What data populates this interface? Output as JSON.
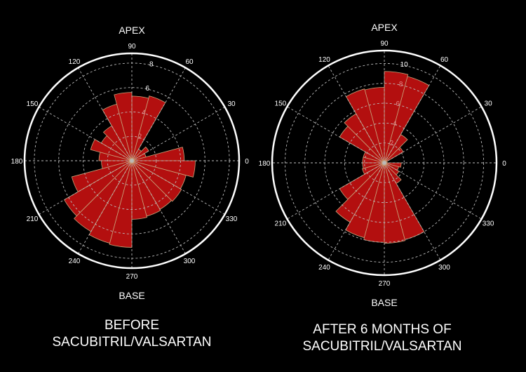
{
  "colors": {
    "background": "#000000",
    "bar_fill": "#b30f0f",
    "bar_edge": "#c8a27a",
    "grid": "#bbbbbb",
    "outer_ring": "#ffffff"
  },
  "chart_data": [
    {
      "type": "polar-bar",
      "top_label": "APEX",
      "bottom_label": "BASE",
      "caption": [
        "BEFORE",
        "SACUBITRIL/VALSARTAN"
      ],
      "angle_ticks": [
        "0",
        "30",
        "60",
        "90",
        "120",
        "150",
        "180",
        "210",
        "240",
        "270",
        "300",
        "330"
      ],
      "radial_ticks": [
        2,
        4,
        6,
        8
      ],
      "rmax": 8.8,
      "grid": true,
      "bins_deg": [
        [
          0,
          15
        ],
        [
          15,
          30
        ],
        [
          30,
          45
        ],
        [
          45,
          60
        ],
        [
          60,
          75
        ],
        [
          75,
          90
        ],
        [
          90,
          105
        ],
        [
          105,
          120
        ],
        [
          120,
          135
        ],
        [
          135,
          150
        ],
        [
          150,
          165
        ],
        [
          165,
          180
        ],
        [
          180,
          195
        ],
        [
          195,
          210
        ],
        [
          210,
          225
        ],
        [
          225,
          240
        ],
        [
          240,
          255
        ],
        [
          255,
          270
        ],
        [
          270,
          285
        ],
        [
          285,
          300
        ],
        [
          300,
          315
        ],
        [
          315,
          330
        ],
        [
          330,
          345
        ],
        [
          345,
          360
        ]
      ],
      "values": [
        4.3,
        1.2,
        1.6,
        1.1,
        5.5,
        5.3,
        5.6,
        4.8,
        3.3,
        2.9,
        3.5,
        2.7,
        2.5,
        5.1,
        6.4,
        6.7,
        7.0,
        7.1,
        4.8,
        4.7,
        4.6,
        4.7,
        4.6,
        5.2
      ]
    },
    {
      "type": "polar-bar",
      "top_label": "APEX",
      "bottom_label": "BASE",
      "caption": [
        "AFTER 6 MONTHS OF",
        "SACUBITRIL/VALSARTAN"
      ],
      "angle_ticks": [
        "0",
        "30",
        "60",
        "90",
        "120",
        "150",
        "180",
        "210",
        "240",
        "270",
        "300",
        "330"
      ],
      "radial_ticks": [
        2,
        4,
        6,
        8,
        10
      ],
      "rmax": 11.3,
      "grid": true,
      "bins_deg": [
        [
          0,
          15
        ],
        [
          15,
          30
        ],
        [
          30,
          45
        ],
        [
          45,
          60
        ],
        [
          60,
          75
        ],
        [
          75,
          90
        ],
        [
          90,
          105
        ],
        [
          105,
          120
        ],
        [
          120,
          135
        ],
        [
          135,
          150
        ],
        [
          150,
          165
        ],
        [
          165,
          180
        ],
        [
          180,
          195
        ],
        [
          195,
          210
        ],
        [
          210,
          225
        ],
        [
          225,
          240
        ],
        [
          240,
          255
        ],
        [
          255,
          270
        ],
        [
          270,
          285
        ],
        [
          285,
          300
        ],
        [
          300,
          315
        ],
        [
          315,
          330
        ],
        [
          330,
          345
        ],
        [
          345,
          360
        ]
      ],
      "values": [
        0.3,
        0.2,
        2.2,
        3.3,
        9.0,
        9.2,
        7.6,
        7.7,
        5.7,
        5.2,
        2.2,
        2.2,
        2.2,
        2.3,
        5.2,
        6.9,
        7.8,
        8.0,
        8.1,
        8.0,
        2.4,
        1.7,
        1.5,
        1.7
      ]
    }
  ]
}
